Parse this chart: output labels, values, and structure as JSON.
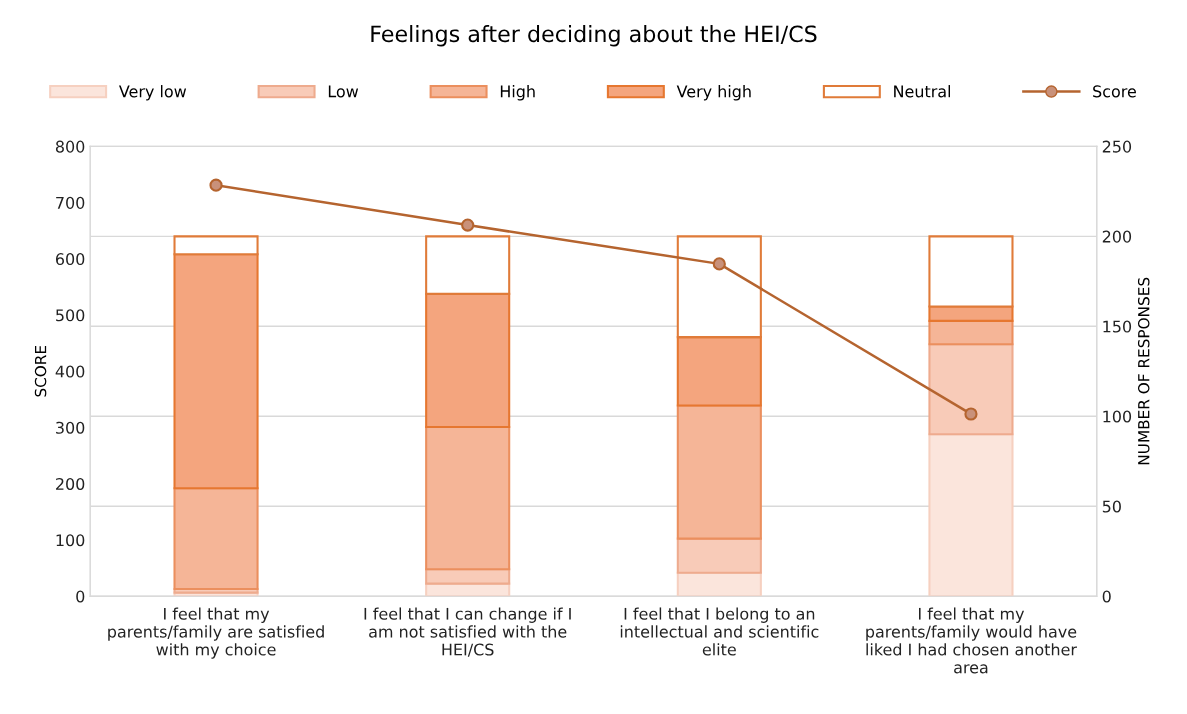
{
  "chart_data": {
    "type": "bar",
    "title": "Feelings after deciding about the HEI/CS",
    "categories": [
      "I feel that my parents/family are satisfied with my choice",
      "I feel that I can change if I am not satisfied with the HEI/CS",
      "I feel that I belong to an intellectual and scientific elite",
      "I feel that my parents/family would have liked I had chosen another area"
    ],
    "stacked": true,
    "series": [
      {
        "name": "Very low",
        "axis": "y2",
        "color": "#fbe5dc",
        "values": [
          2,
          7,
          13,
          90
        ]
      },
      {
        "name": "Low",
        "axis": "y2",
        "color": "#f8cbb8",
        "values": [
          2,
          8,
          19,
          50
        ]
      },
      {
        "name": "High",
        "axis": "y2",
        "color": "#f5b597",
        "values": [
          56,
          79,
          74,
          13
        ]
      },
      {
        "name": "Very high",
        "axis": "y2",
        "color": "#f4a57e",
        "values": [
          130,
          74,
          38,
          8
        ]
      },
      {
        "name": "Neutral",
        "axis": "y2",
        "color": "#ffffff",
        "values": [
          10,
          32,
          56,
          39
        ]
      },
      {
        "name": "Score",
        "type": "line",
        "axis": "y",
        "color": "#b5642f",
        "values": [
          731,
          660,
          591,
          324
        ]
      }
    ],
    "ylabel": "SCORE",
    "y2label": "NUMBER OF RESPONSES",
    "ylim": [
      0,
      800
    ],
    "yticks": [
      0,
      100,
      200,
      300,
      400,
      500,
      600,
      700,
      800
    ],
    "y2lim": [
      0,
      250
    ],
    "y2ticks": [
      0,
      50,
      100,
      150,
      200,
      250
    ],
    "grid": "y2",
    "legend": "top",
    "marker": "circle"
  }
}
